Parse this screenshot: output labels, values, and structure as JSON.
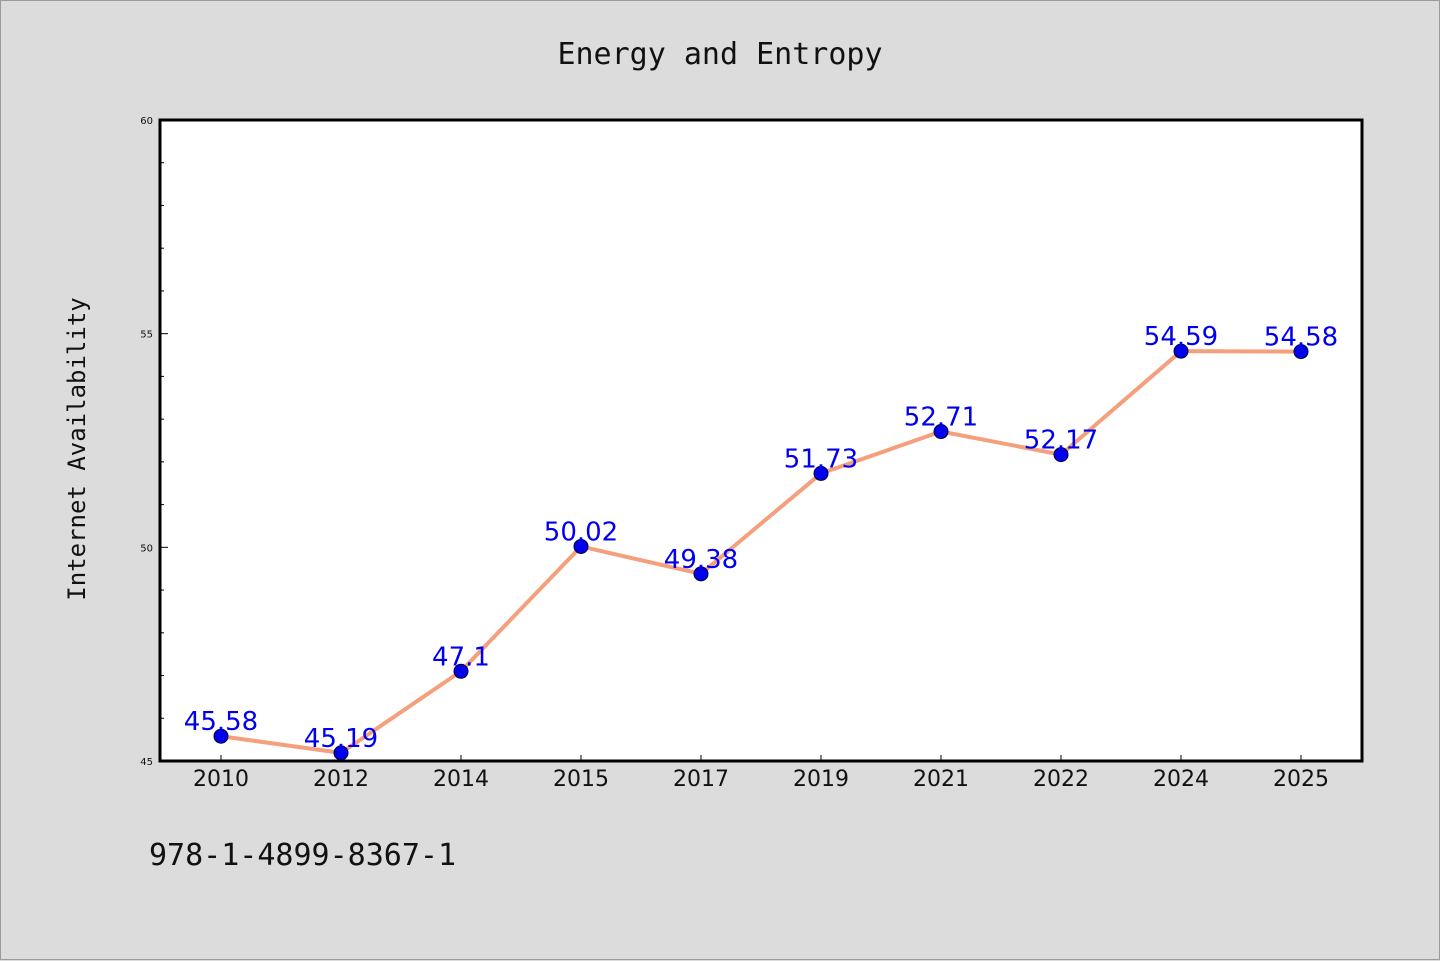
{
  "chart_data": {
    "type": "line",
    "title": "Energy and Entropy",
    "xlabel": "",
    "ylabel": "Internet Availability",
    "categories": [
      "2010",
      "2012",
      "2014",
      "2015",
      "2017",
      "2019",
      "2021",
      "2022",
      "2024",
      "2025"
    ],
    "series": [
      {
        "values": [
          45.58,
          45.19,
          47.1,
          50.02,
          49.38,
          51.73,
          52.71,
          52.17,
          54.59,
          54.58
        ],
        "labels": [
          "45.58",
          "45.19",
          "47.1",
          "50.02",
          "49.38",
          "51.73",
          "52.71",
          "52.17",
          "54.59",
          "54.58"
        ],
        "line_color": "#f4a07c",
        "marker_color": "#0000ee",
        "label_color": "#0000ee"
      }
    ],
    "ylim": [
      45,
      60
    ],
    "yticks": [
      "45",
      "50",
      "55",
      "60"
    ],
    "grid": false,
    "legend": "none"
  },
  "footer": {
    "isbn": "978-1-4899-8367-1"
  },
  "colors": {
    "background": "#dcdcdc",
    "plot_area": "#ffffff",
    "axis": "#000000"
  }
}
